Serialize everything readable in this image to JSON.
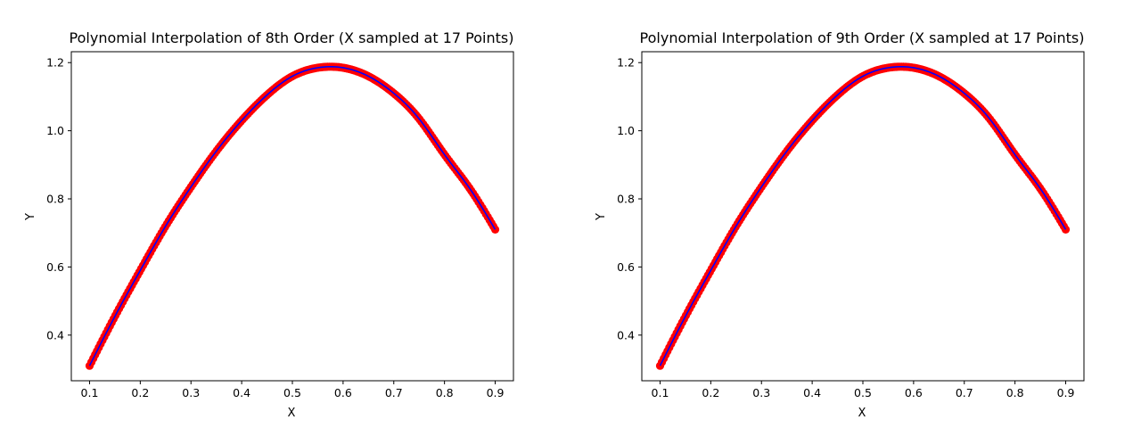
{
  "chart_data": [
    {
      "type": "line",
      "title": "Polynomial Interpolation of 8th Order (X sampled at 17 Points)",
      "xlabel": "X",
      "ylabel": "Y",
      "xlim": [
        0.064,
        0.936
      ],
      "ylim": [
        0.266,
        1.232
      ],
      "xticks": [
        "0.1",
        "0.2",
        "0.3",
        "0.4",
        "0.5",
        "0.6",
        "0.7",
        "0.8",
        "0.9"
      ],
      "yticks": [
        "0.4",
        "0.6",
        "0.8",
        "1.0",
        "1.2"
      ],
      "grid": false,
      "colors": {
        "scatter": "#ff0000",
        "line": "#0000ff"
      },
      "x": [
        0.1,
        0.15,
        0.2,
        0.25,
        0.3,
        0.35,
        0.4,
        0.45,
        0.5,
        0.55,
        0.6,
        0.65,
        0.7,
        0.75,
        0.8,
        0.85,
        0.9
      ],
      "series": [
        {
          "kind": "scatter",
          "values": [
            0.31,
            0.455,
            0.59,
            0.72,
            0.835,
            0.94,
            1.03,
            1.105,
            1.16,
            1.185,
            1.185,
            1.16,
            1.11,
            1.035,
            0.93,
            0.83,
            0.71
          ]
        },
        {
          "kind": "line",
          "values": [
            0.31,
            0.455,
            0.59,
            0.72,
            0.835,
            0.94,
            1.03,
            1.105,
            1.16,
            1.185,
            1.185,
            1.16,
            1.11,
            1.035,
            0.93,
            0.83,
            0.71
          ]
        }
      ]
    },
    {
      "type": "line",
      "title": "Polynomial Interpolation of 9th Order (X sampled at 17 Points)",
      "xlabel": "X",
      "ylabel": "Y",
      "xlim": [
        0.064,
        0.936
      ],
      "ylim": [
        0.266,
        1.232
      ],
      "xticks": [
        "0.1",
        "0.2",
        "0.3",
        "0.4",
        "0.5",
        "0.6",
        "0.7",
        "0.8",
        "0.9"
      ],
      "yticks": [
        "0.4",
        "0.6",
        "0.8",
        "1.0",
        "1.2"
      ],
      "grid": false,
      "colors": {
        "scatter": "#ff0000",
        "line": "#0000ff"
      },
      "x": [
        0.1,
        0.15,
        0.2,
        0.25,
        0.3,
        0.35,
        0.4,
        0.45,
        0.5,
        0.55,
        0.6,
        0.65,
        0.7,
        0.75,
        0.8,
        0.85,
        0.9
      ],
      "series": [
        {
          "kind": "scatter",
          "values": [
            0.31,
            0.455,
            0.59,
            0.72,
            0.835,
            0.94,
            1.03,
            1.105,
            1.16,
            1.185,
            1.185,
            1.16,
            1.11,
            1.035,
            0.93,
            0.83,
            0.71
          ]
        },
        {
          "kind": "line",
          "values": [
            0.31,
            0.455,
            0.59,
            0.72,
            0.835,
            0.94,
            1.03,
            1.105,
            1.16,
            1.185,
            1.185,
            1.16,
            1.11,
            1.035,
            0.93,
            0.83,
            0.71
          ]
        }
      ]
    }
  ]
}
